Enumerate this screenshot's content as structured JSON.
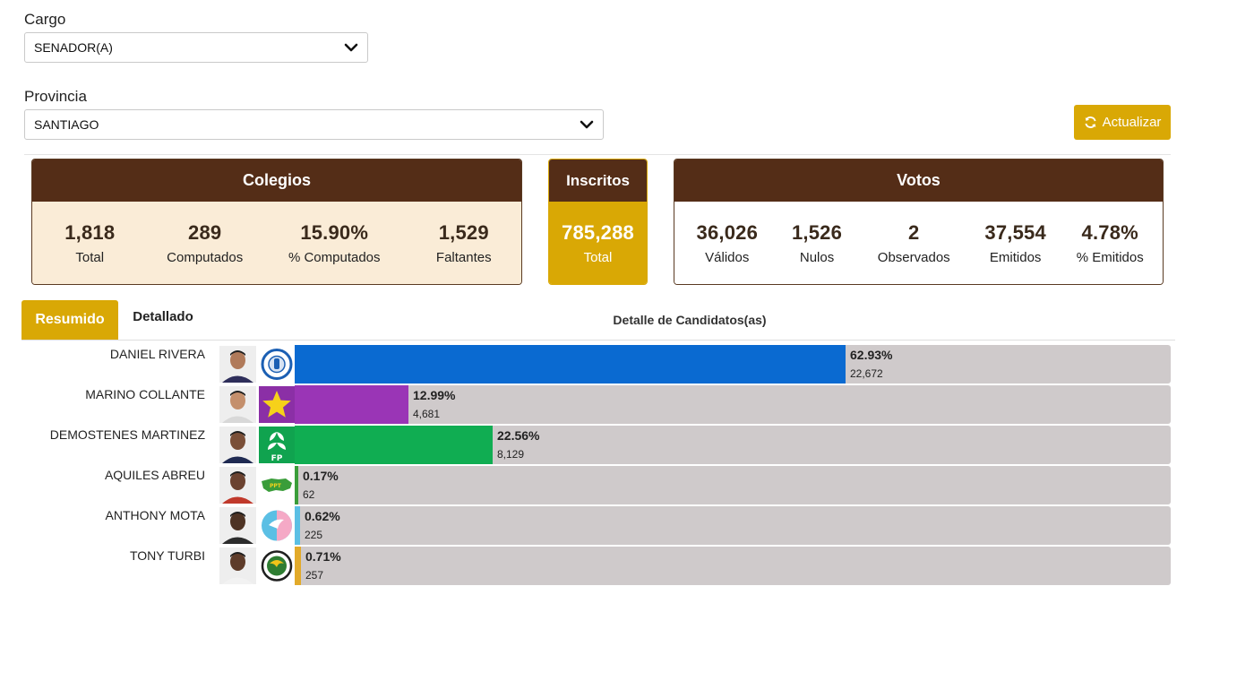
{
  "filters": {
    "cargo_label": "Cargo",
    "cargo_value": "SENADOR(A)",
    "provincia_label": "Provincia",
    "provincia_value": "SANTIAGO",
    "refresh_label": "Actualizar"
  },
  "colegios": {
    "title": "Colegios",
    "stats": [
      {
        "value": "1,818",
        "label": "Total"
      },
      {
        "value": "289",
        "label": "Computados"
      },
      {
        "value": "15.90%",
        "label": "% Computados"
      },
      {
        "value": "1,529",
        "label": "Faltantes"
      }
    ]
  },
  "inscritos": {
    "title": "Inscritos",
    "value": "785,288",
    "label": "Total"
  },
  "votos": {
    "title": "Votos",
    "stats": [
      {
        "value": "36,026",
        "label": "Válidos"
      },
      {
        "value": "1,526",
        "label": "Nulos"
      },
      {
        "value": "2",
        "label": "Observados"
      },
      {
        "value": "37,554",
        "label": "Emitidos"
      },
      {
        "value": "4.78%",
        "label": "% Emitidos"
      }
    ]
  },
  "tabs": {
    "resumido": "Resumido",
    "detallado": "Detallado"
  },
  "detail_title": "Detalle de Candidatos(as)",
  "colors": {
    "brown": "#542d17",
    "gold": "#d9a805",
    "track": "#cfcacb"
  },
  "candidates": [
    {
      "name": "DANIEL RIVERA",
      "pct": "62.93%",
      "votes": "22,672",
      "share": 62.93,
      "color": "#0a6ad1",
      "logo": "prm-party-logo-icon"
    },
    {
      "name": "MARINO COLLANTE",
      "pct": "12.99%",
      "votes": "4,681",
      "share": 12.99,
      "color": "#9a35b6",
      "logo": "pld-star-logo-icon"
    },
    {
      "name": "DEMOSTENES MARTINEZ",
      "pct": "22.56%",
      "votes": "8,129",
      "share": 22.56,
      "color": "#10ad52",
      "logo": "fp-party-logo-icon"
    },
    {
      "name": "AQUILES ABREU",
      "pct": "0.17%",
      "votes": "62",
      "share": 0.17,
      "color": "#3a9d3a",
      "logo": "ppt-map-logo-icon"
    },
    {
      "name": "ANTHONY MOTA",
      "pct": "0.62%",
      "votes": "225",
      "share": 0.62,
      "color": "#5bbfe4",
      "logo": "dove-circle-logo-icon"
    },
    {
      "name": "TONY TURBI",
      "pct": "0.71%",
      "votes": "257",
      "share": 0.71,
      "color": "#e2aa2a",
      "logo": "globe-circle-logo-icon"
    }
  ]
}
